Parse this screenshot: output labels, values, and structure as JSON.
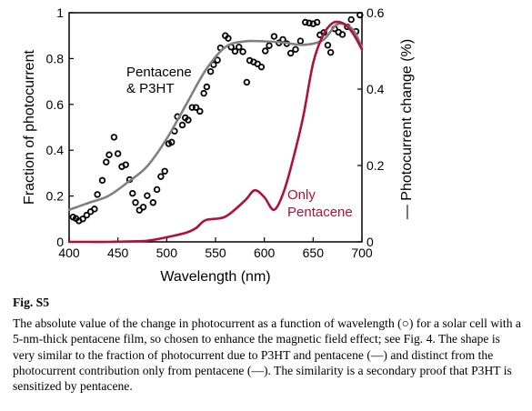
{
  "chart_data": {
    "type": "line",
    "xlabel": "Wavelength (nm)",
    "ylabel": "Fraction of photocurrent",
    "y2label": "— Photocurrent change (%)",
    "xlim": [
      400,
      700
    ],
    "ylim": [
      0,
      1
    ],
    "y2lim": [
      0,
      0.6
    ],
    "x_ticks": [
      "400",
      "450",
      "500",
      "550",
      "600",
      "650",
      "700"
    ],
    "y_ticks": [
      "0",
      "0.2",
      "0.4",
      "0.6",
      "0.8",
      "1"
    ],
    "y2_ticks": [
      "0",
      "0.2",
      "0.4",
      "0.6"
    ],
    "annotations": [
      {
        "text": "Pentacene",
        "color": "#000000"
      },
      {
        "text": "& P3HT",
        "color": "#000000"
      },
      {
        "text": "Only",
        "color": "#b0103a"
      },
      {
        "text": "Pentacene",
        "color": "#b0103a"
      }
    ],
    "series": [
      {
        "type": "scatter",
        "axis": "right",
        "color": "#000000",
        "x": [
          404,
          407,
          410,
          414,
          418,
          422,
          426,
          429,
          434,
          438,
          441,
          446,
          450,
          454,
          458,
          462,
          465,
          468,
          472,
          476,
          480,
          486,
          490,
          494,
          498,
          502,
          505,
          508,
          511,
          516,
          519,
          522,
          526,
          530,
          534,
          538,
          541,
          545,
          548,
          552,
          555,
          560,
          563,
          566,
          570,
          574,
          578,
          582,
          585,
          589,
          593,
          597,
          601,
          605,
          610,
          615,
          619,
          623,
          627,
          632,
          637,
          642,
          646,
          650,
          654,
          657,
          661,
          665,
          668,
          672,
          676,
          680,
          685,
          689,
          694,
          698
        ],
        "y": [
          0.065,
          0.061,
          0.055,
          0.06,
          0.07,
          0.079,
          0.086,
          0.124,
          0.161,
          0.209,
          0.228,
          0.274,
          0.231,
          0.197,
          0.202,
          0.163,
          0.127,
          0.103,
          0.083,
          0.091,
          0.121,
          0.103,
          0.137,
          0.171,
          0.185,
          0.257,
          0.261,
          0.29,
          0.328,
          0.306,
          0.325,
          0.319,
          0.352,
          0.352,
          0.342,
          0.389,
          0.406,
          0.446,
          0.464,
          0.476,
          0.508,
          0.54,
          0.533,
          0.51,
          0.499,
          0.51,
          0.498,
          0.418,
          0.475,
          0.471,
          0.466,
          0.458,
          0.5,
          0.514,
          0.538,
          0.521,
          0.53,
          0.519,
          0.494,
          0.504,
          0.526,
          0.575,
          0.573,
          0.571,
          0.575,
          0.542,
          0.548,
          0.515,
          0.496,
          0.558,
          0.549,
          0.543,
          0.563,
          0.582,
          0.551,
          0.594
        ]
      },
      {
        "type": "line",
        "axis": "left",
        "color": "#808080",
        "x": [
          400,
          420,
          440,
          460,
          480,
          500,
          520,
          540,
          560,
          580,
          600,
          620,
          640,
          660,
          675,
          690,
          700
        ],
        "y": [
          0.14,
          0.17,
          0.2,
          0.26,
          0.33,
          0.45,
          0.6,
          0.75,
          0.85,
          0.875,
          0.875,
          0.87,
          0.86,
          0.88,
          0.95,
          0.93,
          0.85
        ]
      },
      {
        "type": "line",
        "axis": "left",
        "color": "#b0103a",
        "x": [
          400,
          420,
          440,
          460,
          480,
          500,
          520,
          530,
          540,
          560,
          580,
          590,
          600,
          610,
          620,
          630,
          640,
          650,
          660,
          670,
          680,
          690,
          700
        ],
        "y": [
          0.0,
          0.0,
          0.0,
          0.002,
          0.005,
          0.02,
          0.04,
          0.06,
          0.095,
          0.11,
          0.18,
          0.225,
          0.195,
          0.14,
          0.22,
          0.37,
          0.55,
          0.78,
          0.9,
          0.955,
          0.955,
          0.915,
          0.84
        ]
      }
    ]
  },
  "caption": {
    "label": "Fig. S5",
    "text": "The absolute value of the change in photocurrent as a function of wavelength (○) for a solar cell with a 5-nm-thick pentacene film, so chosen to enhance the magnetic field effect; see Fig. 4. The shape is very similar to the fraction of photocurrent due to P3HT and pentacene (—) and distinct from the photocurrent contribution only from pentacene (—). The similarity is a secondary proof that P3HT is sensitized by pentacene."
  }
}
